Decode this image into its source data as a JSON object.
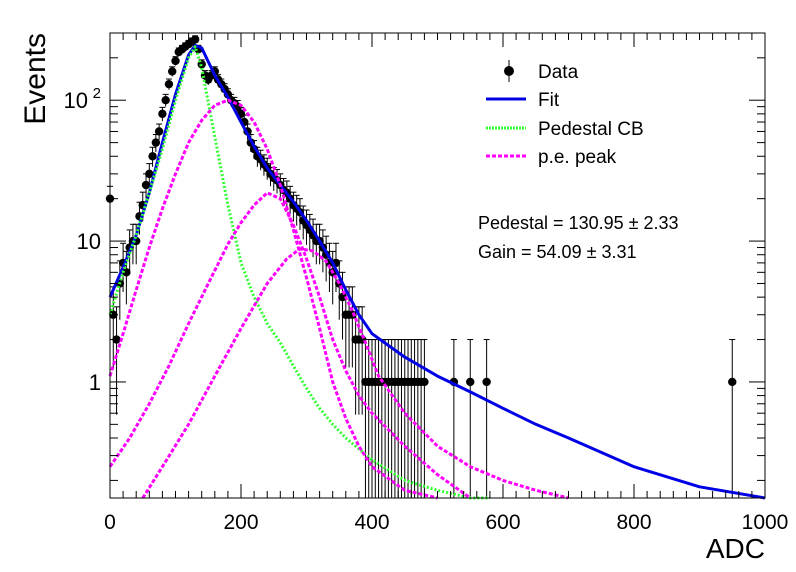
{
  "chart_data": {
    "type": "scatter",
    "title": "",
    "xlabel": "ADC",
    "ylabel": "Events",
    "xlim": [
      0,
      1000
    ],
    "ylim": [
      0.15,
      300
    ],
    "yscale": "log",
    "x_ticks": [
      "0",
      "200",
      "400",
      "600",
      "800",
      "1000"
    ],
    "y_ticks": [
      {
        "value": 1,
        "label": "1"
      },
      {
        "value": 10,
        "label": "10"
      },
      {
        "value": 100,
        "label": "10",
        "sup": "2"
      }
    ],
    "grid": false,
    "legend": {
      "position": "top-right",
      "entries": [
        {
          "label": "Data",
          "style": "marker",
          "color": "#000000"
        },
        {
          "label": "Fit",
          "style": "solid",
          "color": "#0000e6"
        },
        {
          "label": "Pedestal CB",
          "style": "dotted",
          "color": "#33ff33"
        },
        {
          "label": "p.e. peak",
          "style": "dashed",
          "color": "#ff00ff"
        }
      ]
    },
    "annotations": [
      "Pedestal = 130.95 ± 2.33",
      "Gain = 54.09 ± 3.31"
    ],
    "fit_params": {
      "pedestal": 130.95,
      "pedestal_err": 2.33,
      "gain": 54.09,
      "gain_err": 3.31
    },
    "series": [
      {
        "name": "Data",
        "kind": "points",
        "x": [
          0,
          5,
          10,
          15,
          20,
          25,
          30,
          35,
          40,
          45,
          50,
          55,
          60,
          65,
          70,
          75,
          80,
          85,
          90,
          95,
          100,
          105,
          110,
          115,
          120,
          125,
          130,
          135,
          140,
          145,
          150,
          155,
          160,
          165,
          170,
          175,
          180,
          185,
          190,
          195,
          200,
          205,
          210,
          215,
          220,
          225,
          230,
          235,
          240,
          245,
          250,
          255,
          260,
          265,
          270,
          275,
          280,
          285,
          290,
          295,
          300,
          305,
          310,
          315,
          320,
          325,
          330,
          335,
          340,
          345,
          350,
          355,
          360,
          365,
          370,
          375,
          380,
          385,
          390,
          395,
          400,
          405,
          410,
          415,
          420,
          425,
          430,
          435,
          440,
          445,
          450,
          455,
          460,
          465,
          470,
          475,
          480,
          525,
          550,
          575,
          950
        ],
        "y": [
          20,
          3,
          2,
          5,
          7,
          6,
          9,
          10,
          10,
          15,
          18,
          25,
          30,
          40,
          50,
          60,
          80,
          100,
          130,
          160,
          190,
          220,
          230,
          240,
          250,
          260,
          270,
          230,
          180,
          150,
          140,
          150,
          160,
          140,
          130,
          120,
          110,
          100,
          95,
          90,
          80,
          70,
          60,
          50,
          45,
          40,
          38,
          35,
          33,
          30,
          28,
          27,
          25,
          23,
          22,
          20,
          18,
          17,
          16,
          14,
          13,
          12,
          11,
          10,
          10,
          9,
          8,
          7,
          6,
          7,
          5,
          4,
          3,
          3,
          3,
          2,
          2,
          2,
          1,
          1,
          1,
          1,
          1,
          1,
          1,
          1,
          1,
          1,
          1,
          1,
          1,
          1,
          1,
          1,
          1,
          1,
          1,
          1,
          1,
          1,
          1
        ],
        "color": "#000000"
      },
      {
        "name": "Fit",
        "kind": "line",
        "x": [
          0,
          20,
          40,
          60,
          80,
          100,
          120,
          130,
          140,
          160,
          180,
          200,
          220,
          240,
          260,
          280,
          300,
          320,
          340,
          360,
          380,
          400,
          450,
          500,
          550,
          600,
          650,
          700,
          800,
          900,
          1000
        ],
        "y": [
          4,
          6.5,
          11,
          22,
          50,
          110,
          210,
          245,
          235,
          150,
          105,
          70,
          47,
          33,
          25,
          19,
          14,
          10,
          7,
          4.5,
          3,
          2.2,
          1.5,
          1.1,
          0.85,
          0.65,
          0.5,
          0.4,
          0.25,
          0.18,
          0.15
        ],
        "color": "#0000e6"
      },
      {
        "name": "Pedestal CB",
        "kind": "line",
        "x": [
          0,
          20,
          40,
          60,
          80,
          100,
          120,
          130,
          140,
          160,
          180,
          200,
          220,
          240,
          260,
          280,
          300,
          320,
          340,
          360,
          400,
          450,
          500,
          550,
          580
        ],
        "y": [
          3,
          6,
          11,
          22,
          45,
          100,
          200,
          240,
          170,
          55,
          18,
          7,
          4,
          2.6,
          1.9,
          1.3,
          0.9,
          0.65,
          0.5,
          0.4,
          0.28,
          0.2,
          0.17,
          0.15,
          0.15
        ],
        "color": "#33ff33"
      },
      {
        "name": "p.e. peak",
        "kind": "line",
        "x": [
          0,
          20,
          40,
          60,
          80,
          100,
          120,
          140,
          160,
          180,
          200,
          220,
          240,
          260,
          280,
          300,
          320,
          340,
          360,
          380,
          400,
          450,
          500
        ],
        "y": [
          1.1,
          2.2,
          4.5,
          9,
          17,
          30,
          50,
          72,
          92,
          100,
          92,
          70,
          45,
          25,
          12,
          5.5,
          2.4,
          1,
          0.55,
          0.35,
          0.25,
          0.17,
          0.15
        ],
        "color": "#ff00ff"
      },
      {
        "name": "p.e. peak",
        "kind": "line",
        "x": [
          0,
          30,
          60,
          90,
          120,
          150,
          180,
          200,
          220,
          240,
          260,
          280,
          300,
          320,
          340,
          360,
          380,
          400,
          450,
          500,
          550
        ],
        "y": [
          0.25,
          0.4,
          0.7,
          1.3,
          2.6,
          5,
          9.5,
          13.5,
          18,
          22,
          20,
          13,
          7.5,
          4,
          2,
          1.2,
          0.8,
          0.6,
          0.35,
          0.22,
          0.15
        ],
        "color": "#ff00ff"
      },
      {
        "name": "p.e. peak",
        "kind": "line",
        "x": [
          50,
          80,
          120,
          160,
          200,
          240,
          270,
          290,
          310,
          330,
          350,
          370,
          390,
          410,
          450,
          500,
          550,
          600,
          650,
          700
        ],
        "y": [
          0.15,
          0.25,
          0.5,
          1.1,
          2.4,
          5,
          7.5,
          8.8,
          8.5,
          7.2,
          5,
          3.2,
          1.9,
          1.1,
          0.6,
          0.35,
          0.25,
          0.2,
          0.17,
          0.15
        ],
        "color": "#ff00ff"
      }
    ]
  }
}
